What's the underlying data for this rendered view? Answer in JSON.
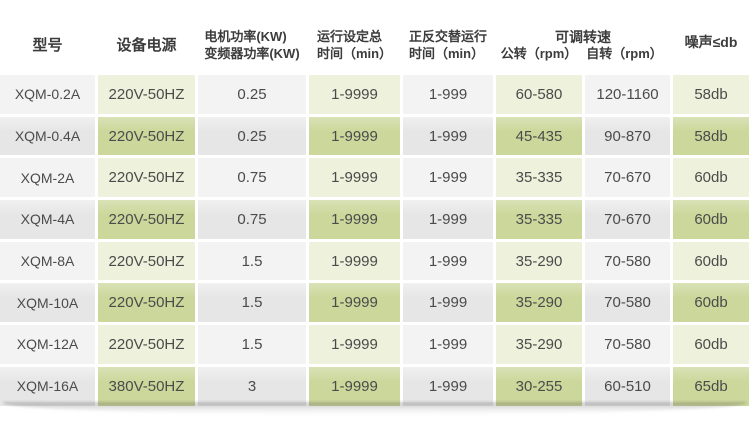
{
  "colors": {
    "green_light": "#eef1db",
    "green_dark": "#ccd79b",
    "green_dark_top": "#d9e2b6",
    "gray_light": "#f3f3f3",
    "gray_dark": "#e6e6e6",
    "gray_dark_top": "#f0f0f0",
    "header_text": "#3c3c3c",
    "cell_text": "#4b4b4b"
  },
  "table": {
    "headers": {
      "model": "型号",
      "power_supply": "设备电源",
      "motor_power_line1": "电机功率(KW)",
      "motor_power_line2": "变频器功率(KW)",
      "run_time_line1": "运行设定总",
      "run_time_line2": "时间（min）",
      "alt_time_line1": "正反交替运行",
      "alt_time_line2": "时间（min）",
      "speed_group": "可调转速",
      "revolution": "公转（rpm）",
      "rotation": "自转（rpm）",
      "noise": "噪声≤db"
    },
    "rows": [
      {
        "model": "XQM-0.2A",
        "power_supply": "220V-50HZ",
        "motor_power": "0.25",
        "run_time": "1-9999",
        "alt_time": "1-999",
        "revolution": "60-580",
        "rotation": "120-1160",
        "noise": "58db"
      },
      {
        "model": "XQM-0.4A",
        "power_supply": "220V-50HZ",
        "motor_power": "0.25",
        "run_time": "1-9999",
        "alt_time": "1-999",
        "revolution": "45-435",
        "rotation": "90-870",
        "noise": "58db"
      },
      {
        "model": "XQM-2A",
        "power_supply": "220V-50HZ",
        "motor_power": "0.75",
        "run_time": "1-9999",
        "alt_time": "1-999",
        "revolution": "35-335",
        "rotation": "70-670",
        "noise": "60db"
      },
      {
        "model": "XQM-4A",
        "power_supply": "220V-50HZ",
        "motor_power": "0.75",
        "run_time": "1-9999",
        "alt_time": "1-999",
        "revolution": "35-335",
        "rotation": "70-670",
        "noise": "60db"
      },
      {
        "model": "XQM-8A",
        "power_supply": "220V-50HZ",
        "motor_power": "1.5",
        "run_time": "1-9999",
        "alt_time": "1-999",
        "revolution": "35-290",
        "rotation": "70-580",
        "noise": "60db"
      },
      {
        "model": "XQM-10A",
        "power_supply": "220V-50HZ",
        "motor_power": "1.5",
        "run_time": "1-9999",
        "alt_time": "1-999",
        "revolution": "35-290",
        "rotation": "70-580",
        "noise": "60db"
      },
      {
        "model": "XQM-12A",
        "power_supply": "220V-50HZ",
        "motor_power": "1.5",
        "run_time": "1-9999",
        "alt_time": "1-999",
        "revolution": "35-290",
        "rotation": "70-580",
        "noise": "60db"
      },
      {
        "model": "XQM-16A",
        "power_supply": "380V-50HZ",
        "motor_power": "3",
        "run_time": "1-9999",
        "alt_time": "1-999",
        "revolution": "30-255",
        "rotation": "60-510",
        "noise": "65db"
      }
    ]
  }
}
